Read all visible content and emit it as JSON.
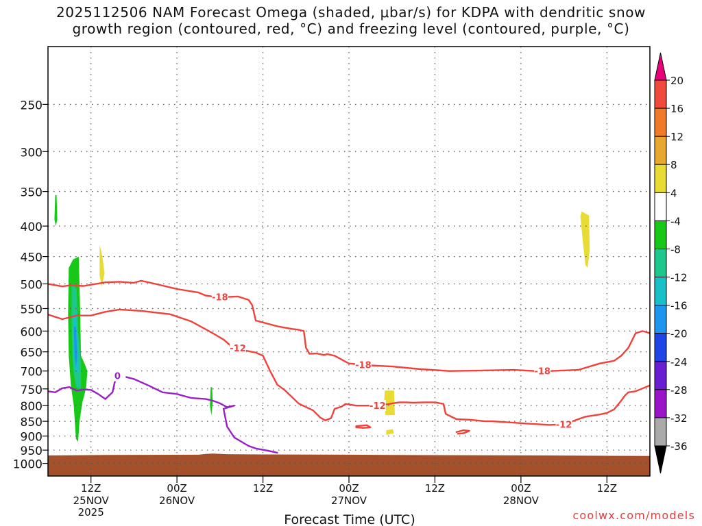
{
  "header": {
    "title_line1": "2025112506 NAM Forecast Omega (shaded, μbar/s) for KDPA with dendritic snow",
    "title_line2": "growth region (contoured, red, °C) and freezing level (contoured, purple, °C)"
  },
  "footer": {
    "credit": "coolwx.com/models"
  },
  "colors": {
    "snow_growth_contour": "#f2403a",
    "freezing_level_contour": "#9a1fc8",
    "terrain": "#a4512b",
    "grid": "#555555"
  },
  "chart_data": {
    "type": "heatmap",
    "title": "2025112506 NAM Forecast Omega (shaded, μbar/s) for KDPA with dendritic snow growth region (contoured, red, °C) and freezing level (contoured, purple, °C)",
    "xlabel": "Forecast Time (UTC)",
    "ylabel": "",
    "x_unit": "hours from 2025-11-25 06Z",
    "xlim": [
      0,
      84
    ],
    "y_unit": "hPa",
    "ylim": [
      1050,
      200
    ],
    "y_ticks": [
      250,
      300,
      350,
      400,
      450,
      500,
      550,
      600,
      650,
      700,
      750,
      800,
      850,
      900,
      950,
      1000
    ],
    "x_ticks": [
      {
        "hour": 6,
        "label": "12Z",
        "date": "25NOV",
        "year": "2025"
      },
      {
        "hour": 18,
        "label": "00Z",
        "date": "26NOV",
        "year": ""
      },
      {
        "hour": 30,
        "label": "12Z",
        "date": "",
        "year": ""
      },
      {
        "hour": 42,
        "label": "00Z",
        "date": "27NOV",
        "year": ""
      },
      {
        "hour": 54,
        "label": "12Z",
        "date": "",
        "year": ""
      },
      {
        "hour": 66,
        "label": "00Z",
        "date": "28NOV",
        "year": ""
      },
      {
        "hour": 78,
        "label": "12Z",
        "date": "",
        "year": ""
      }
    ],
    "colorbar": {
      "unit": "μbar/s",
      "labels": [
        "20",
        "16",
        "12",
        "8",
        "4",
        "-4",
        "-8",
        "-12",
        "-16",
        "-20",
        "-24",
        "-28",
        "-32",
        "-36"
      ],
      "top_triangle_color": "#e8007a",
      "bottom_triangle_color": "#000000",
      "bands": [
        {
          "range": [
            16,
            20
          ],
          "color": "#f04a3c"
        },
        {
          "range": [
            12,
            16
          ],
          "color": "#f07a28"
        },
        {
          "range": [
            8,
            12
          ],
          "color": "#e8a830"
        },
        {
          "range": [
            4,
            8
          ],
          "color": "#e8dc34"
        },
        {
          "range": [
            -4,
            4
          ],
          "color": "#ffffff"
        },
        {
          "range": [
            -8,
            -4
          ],
          "color": "#18c818"
        },
        {
          "range": [
            -12,
            -8
          ],
          "color": "#1ec88c"
        },
        {
          "range": [
            -16,
            -12
          ],
          "color": "#18c0c8"
        },
        {
          "range": [
            -20,
            -16
          ],
          "color": "#1e96f0"
        },
        {
          "range": [
            -24,
            -20
          ],
          "color": "#1e46e6"
        },
        {
          "range": [
            -28,
            -24
          ],
          "color": "#6a1ed2"
        },
        {
          "range": [
            -32,
            -28
          ],
          "color": "#9a14c8"
        },
        {
          "range": [
            -36,
            -32
          ],
          "color": "#aaaaaa"
        }
      ]
    },
    "terrain_surface": [
      [
        0,
        970
      ],
      [
        8,
        968
      ],
      [
        21,
        967
      ],
      [
        22,
        964
      ],
      [
        23,
        963
      ],
      [
        25,
        965
      ],
      [
        30,
        966
      ],
      [
        42,
        967
      ],
      [
        48,
        968
      ],
      [
        58,
        969
      ],
      [
        70,
        970
      ],
      [
        84,
        972
      ]
    ],
    "omega_patches": [
      {
        "value": -6,
        "color": "#18c818",
        "points": [
          [
            1,
            355
          ],
          [
            1.2,
            355
          ],
          [
            1.3,
            390
          ],
          [
            1.1,
            400
          ],
          [
            0.9,
            390
          ]
        ]
      },
      {
        "value": -6,
        "color": "#18c818",
        "points": [
          [
            3.5,
            455
          ],
          [
            4.3,
            450
          ],
          [
            4.5,
            560
          ],
          [
            4.6,
            660
          ],
          [
            5.1,
            680
          ],
          [
            5.5,
            700
          ],
          [
            5.3,
            750
          ],
          [
            4.8,
            790
          ],
          [
            4.4,
            850
          ],
          [
            4.2,
            920
          ],
          [
            3.9,
            910
          ],
          [
            3.6,
            800
          ],
          [
            3.2,
            740
          ],
          [
            2.9,
            660
          ],
          [
            2.8,
            560
          ],
          [
            2.9,
            470
          ]
        ]
      },
      {
        "value": -10,
        "color": "#1ec88c",
        "points": [
          [
            3.3,
            500
          ],
          [
            4.0,
            510
          ],
          [
            4.2,
            600
          ],
          [
            4.6,
            680
          ],
          [
            4.6,
            750
          ],
          [
            3.9,
            745
          ],
          [
            3.5,
            690
          ],
          [
            3.3,
            600
          ]
        ]
      },
      {
        "value": -14,
        "color": "#18c0c8",
        "points": [
          [
            3.5,
            560
          ],
          [
            3.9,
            560
          ],
          [
            4.2,
            650
          ],
          [
            4.3,
            700
          ],
          [
            3.9,
            705
          ],
          [
            3.6,
            650
          ]
        ]
      },
      {
        "value": -18,
        "color": "#1e96f0",
        "points": [
          [
            3.6,
            590
          ],
          [
            3.9,
            590
          ],
          [
            4.1,
            660
          ],
          [
            3.9,
            690
          ],
          [
            3.7,
            660
          ]
        ]
      },
      {
        "value": 5,
        "color": "#e8dc34",
        "points": [
          [
            7.2,
            430
          ],
          [
            7.6,
            450
          ],
          [
            7.9,
            480
          ],
          [
            7.5,
            505
          ],
          [
            7.2,
            485
          ]
        ]
      },
      {
        "value": -6,
        "color": "#18c818",
        "points": [
          [
            22.7,
            745
          ],
          [
            22.9,
            745
          ],
          [
            23.0,
            790
          ],
          [
            22.8,
            830
          ],
          [
            22.6,
            800
          ]
        ]
      },
      {
        "value": 5,
        "color": "#e8dc34",
        "points": [
          [
            47.0,
            755
          ],
          [
            48.3,
            755
          ],
          [
            48.4,
            830
          ],
          [
            47.1,
            830
          ],
          [
            46.9,
            790
          ]
        ]
      },
      {
        "value": 5,
        "color": "#e8dc34",
        "points": [
          [
            47.2,
            880
          ],
          [
            48.1,
            876
          ],
          [
            48.3,
            890
          ],
          [
            47.2,
            896
          ]
        ]
      },
      {
        "value": 5,
        "color": "#e8dc34",
        "points": [
          [
            74.5,
            378
          ],
          [
            75.5,
            384
          ],
          [
            75.6,
            440
          ],
          [
            75.3,
            470
          ],
          [
            75.0,
            465
          ],
          [
            74.6,
            420
          ],
          [
            74.3,
            385
          ]
        ]
      }
    ],
    "contours": [
      {
        "series": "dendritic snow growth region",
        "level": -18,
        "label": "-18",
        "color": "#f2403a",
        "points": [
          [
            0,
            500
          ],
          [
            2,
            505
          ],
          [
            3,
            503
          ],
          [
            5,
            504
          ],
          [
            8,
            497
          ],
          [
            10,
            496
          ],
          [
            12,
            498
          ],
          [
            13,
            494
          ],
          [
            15,
            500
          ],
          [
            18,
            510
          ],
          [
            21,
            517
          ],
          [
            22,
            523
          ],
          [
            23,
            525
          ],
          [
            24,
            526
          ],
          [
            25,
            526
          ],
          [
            26.5,
            525
          ],
          [
            28,
            532
          ],
          [
            28.5,
            543
          ],
          [
            29,
            576
          ],
          [
            32,
            589
          ],
          [
            34,
            595
          ],
          [
            35,
            597
          ],
          [
            35.7,
            600
          ],
          [
            36,
            640
          ],
          [
            36.5,
            655
          ],
          [
            37.5,
            654
          ],
          [
            38.5,
            658
          ],
          [
            39,
            656
          ],
          [
            40,
            660
          ],
          [
            42,
            680
          ],
          [
            45,
            685
          ],
          [
            48,
            688
          ],
          [
            52,
            695
          ],
          [
            56,
            700
          ],
          [
            60,
            699
          ],
          [
            65,
            697
          ],
          [
            68,
            700
          ],
          [
            70,
            700
          ],
          [
            74,
            697
          ],
          [
            77,
            680
          ],
          [
            79,
            673
          ],
          [
            80,
            660
          ],
          [
            81,
            640
          ],
          [
            82,
            605
          ],
          [
            83,
            600
          ],
          [
            84,
            605
          ]
        ],
        "labels_at": [
          [
            24,
            526
          ],
          [
            44,
            683
          ],
          [
            69,
            700
          ]
        ]
      },
      {
        "series": "dendritic snow growth region",
        "level": -12,
        "label": "-12",
        "color": "#f2403a",
        "points": [
          [
            0,
            563
          ],
          [
            2,
            573
          ],
          [
            4,
            565
          ],
          [
            6,
            565
          ],
          [
            8,
            557
          ],
          [
            10,
            552
          ],
          [
            13,
            555
          ],
          [
            17,
            562
          ],
          [
            20,
            578
          ],
          [
            23,
            605
          ],
          [
            24.5,
            620
          ],
          [
            25.5,
            635
          ],
          [
            27,
            645
          ],
          [
            29,
            652
          ],
          [
            30,
            660
          ],
          [
            31,
            700
          ],
          [
            32,
            738
          ],
          [
            33,
            753
          ],
          [
            34,
            773
          ],
          [
            35,
            794
          ],
          [
            37,
            815
          ],
          [
            38,
            838
          ],
          [
            38.7,
            847
          ],
          [
            39.5,
            840
          ],
          [
            40,
            810
          ],
          [
            41,
            803
          ],
          [
            41.5,
            795
          ],
          [
            43,
            800
          ],
          [
            45,
            800
          ],
          [
            46.5,
            799
          ],
          [
            47,
            797
          ],
          [
            49,
            790
          ],
          [
            50,
            790
          ],
          [
            51,
            791
          ],
          [
            52.5,
            790
          ],
          [
            54,
            790
          ],
          [
            55.2,
            795
          ],
          [
            55.5,
            826
          ],
          [
            57,
            843
          ],
          [
            59,
            845
          ],
          [
            61,
            850
          ],
          [
            62,
            850
          ],
          [
            64,
            853
          ],
          [
            67,
            858
          ],
          [
            70,
            862
          ],
          [
            72,
            860
          ],
          [
            75,
            835
          ],
          [
            77,
            828
          ],
          [
            78,
            823
          ],
          [
            79,
            812
          ],
          [
            80,
            785
          ],
          [
            80.5,
            770
          ],
          [
            81,
            760
          ],
          [
            82,
            757
          ],
          [
            84,
            740
          ]
        ],
        "labels_at": [
          [
            26.5,
            640
          ],
          [
            46,
            800
          ],
          [
            72,
            860
          ]
        ]
      },
      {
        "series": "dendritic snow growth region",
        "level": -12,
        "label": "",
        "color": "#f2403a",
        "points": [
          [
            43,
            866
          ],
          [
            44.5,
            863
          ],
          [
            45,
            870
          ],
          [
            44,
            872
          ],
          [
            43,
            870
          ]
        ]
      },
      {
        "series": "dendritic snow growth region",
        "level": -12,
        "label": "",
        "color": "#f2403a",
        "points": [
          [
            57,
            886
          ],
          [
            58,
            880
          ],
          [
            58.8,
            882
          ],
          [
            58,
            890
          ],
          [
            57.2,
            892
          ]
        ]
      },
      {
        "series": "freezing level",
        "level": 0,
        "label": "0",
        "color": "#9a1fc8",
        "points": [
          [
            0,
            757
          ],
          [
            1,
            760
          ],
          [
            2,
            748
          ],
          [
            3,
            745
          ],
          [
            4,
            755
          ],
          [
            5,
            752
          ],
          [
            6,
            753
          ],
          [
            7,
            765
          ],
          [
            8,
            780
          ],
          [
            9,
            760
          ],
          [
            9.5,
            715
          ],
          [
            10,
            712
          ],
          [
            12,
            722
          ],
          [
            14,
            740
          ],
          [
            16,
            760
          ],
          [
            18,
            765
          ],
          [
            20,
            777
          ],
          [
            22,
            780
          ],
          [
            23,
            785
          ],
          [
            24,
            793
          ],
          [
            25,
            805
          ],
          [
            26,
            800
          ],
          [
            24.5,
            810
          ],
          [
            25,
            868
          ],
          [
            26,
            905
          ],
          [
            28,
            935
          ],
          [
            29,
            944
          ],
          [
            31,
            954
          ],
          [
            32,
            960
          ]
        ],
        "labels_at": [
          [
            9.7,
            713
          ]
        ]
      }
    ]
  }
}
